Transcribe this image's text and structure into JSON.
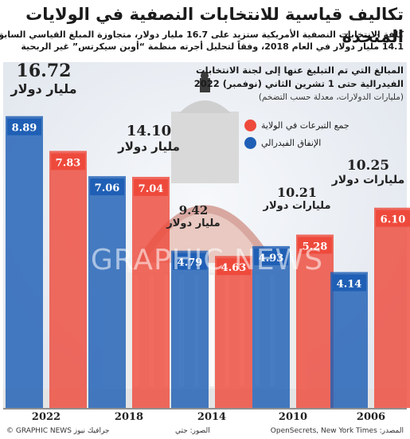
{
  "title": "تكاليف قياسية للانتخابات النصفية في الولايات المتحدة",
  "subtitle_lines": [
    "كلفة الانتخابات النصفية الأمريكية ستزيد على 16.7 مليار دولار، متجاوزة المبلغ القياسي السابق",
    "14.1 مليار دولار في العام 2018، وفقاً لتحليل أجرته منظمة “أوبن سيكرتس” غير الربحية"
  ],
  "info": {
    "line1": "المبالغ التي تم التبليغ عنها إلى لجنة الانتخابات",
    "line2": "الفيدرالية حتى 1 تشرين الثاني (نوفمبر) 2022",
    "note": "(مليارات الدولارات، معدلة حسب التضخم)"
  },
  "watermark": "GRAPHIC NEWS",
  "colors": {
    "state": "#ee4a3c",
    "federal": "#1f5fb5",
    "state_bg": "#f5a496",
    "federal_bg": "#7d9fd6"
  },
  "chart_data": {
    "type": "bar",
    "categories": [
      "2022",
      "2018",
      "2014",
      "2010",
      "2006"
    ],
    "series": [
      {
        "name": "الإنفاق الفيدرالي",
        "values": [
          8.89,
          7.06,
          4.79,
          4.93,
          4.14
        ]
      },
      {
        "name": "جمع التبرعات في الولاية",
        "values": [
          7.83,
          7.04,
          4.63,
          5.28,
          6.1
        ]
      }
    ],
    "totals": [
      "16.72",
      "14.10",
      "9.42",
      "10.21",
      "10.25"
    ],
    "total_unit_billion": "مليار دولار",
    "total_unit_billions": "مليارات دولار",
    "legend": [
      "جمع التبرعات في الولاية",
      "الإنفاق الفيدرالي"
    ],
    "ylim": [
      0,
      10
    ]
  },
  "footer": {
    "source": "المصدر: OpenSecrets, New York Times",
    "photo": "الصور: جتي",
    "credit": "© GRAPHIC NEWS جرافيك نيوز"
  }
}
